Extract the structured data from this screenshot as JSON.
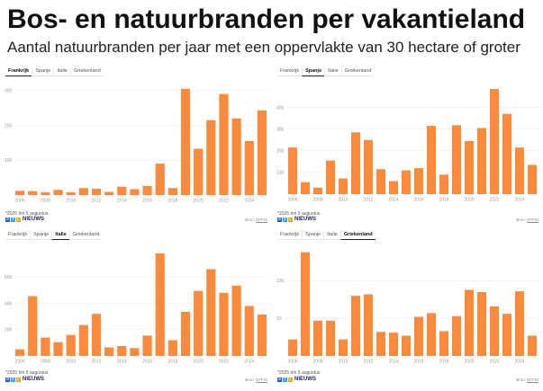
{
  "header": {
    "title": "Bos- en natuurbranden per vakantieland",
    "subtitle": "Aantal natuurbranden per jaar met een oppervlakte van 30 hectare of groter"
  },
  "colors": {
    "bar": "#fb8a3c",
    "brand_r": "#2a5ad8",
    "brand_t": "#3aa6e6",
    "brand_l": "#f4a61c",
    "brand_text": "#1c2050"
  },
  "panels": [
    {
      "tabs": [
        {
          "label": "Frankrijk",
          "active": true
        },
        {
          "label": "Spanje",
          "active": false
        },
        {
          "label": "Italie",
          "active": false
        },
        {
          "label": "Griekenland",
          "active": false
        }
      ],
      "footnote": "*2025 t/m 5 augustus",
      "brand": {
        "letters": [
          "R",
          "T",
          "L"
        ],
        "name": "NIEUWS"
      },
      "source": {
        "label": "Bron:",
        "link": "EFFIS"
      }
    },
    {
      "tabs": [
        {
          "label": "Frankrijk",
          "active": false
        },
        {
          "label": "Spanje",
          "active": true
        },
        {
          "label": "Italie",
          "active": false
        },
        {
          "label": "Griekenland",
          "active": false
        }
      ],
      "footnote": "*2025 t/m 5 augustus",
      "brand": {
        "letters": [
          "R",
          "T",
          "L"
        ],
        "name": "NIEUWS"
      },
      "source": {
        "label": "Bron:",
        "link": "EFFIS"
      }
    },
    {
      "tabs": [
        {
          "label": "Frankrijk",
          "active": false
        },
        {
          "label": "Spanje",
          "active": false
        },
        {
          "label": "Italie",
          "active": true
        },
        {
          "label": "Griekenland",
          "active": false
        }
      ],
      "footnote": "*2025 t/m 5 augustus",
      "brand": {
        "letters": [
          "R",
          "T",
          "L"
        ],
        "name": "NIEUWS"
      },
      "source": {
        "label": "Bron:",
        "link": "EFFIS"
      }
    },
    {
      "tabs": [
        {
          "label": "Frankrijk",
          "active": false
        },
        {
          "label": "Spanje",
          "active": false
        },
        {
          "label": "Italie",
          "active": false
        },
        {
          "label": "Griekenland",
          "active": true
        }
      ],
      "footnote": "*2025 t/m 5 augustus",
      "brand": {
        "letters": [
          "R",
          "T",
          "L"
        ],
        "name": "NIEUWS"
      },
      "source": {
        "label": "Bron:",
        "link": "EFFIS"
      }
    }
  ],
  "chart_data": [
    {
      "type": "bar",
      "categories": [
        2006,
        2007,
        2008,
        2009,
        2010,
        2011,
        2012,
        2013,
        2014,
        2015,
        2016,
        2017,
        2018,
        2019,
        2020,
        2021,
        2022,
        2023,
        2024,
        2025
      ],
      "values": [
        12,
        11,
        8,
        15,
        8,
        20,
        18,
        9,
        24,
        17,
        26,
        90,
        20,
        305,
        133,
        215,
        290,
        220,
        155,
        243
      ],
      "ylim": [
        0,
        320
      ],
      "yticks": [
        100,
        200,
        300
      ],
      "xticks": [
        2006,
        2008,
        2010,
        2012,
        2014,
        2016,
        2018,
        2020,
        2022,
        2024
      ]
    },
    {
      "type": "bar",
      "categories": [
        2006,
        2007,
        2008,
        2009,
        2010,
        2011,
        2012,
        2013,
        2014,
        2015,
        2016,
        2017,
        2018,
        2019,
        2020,
        2021,
        2022,
        2023,
        2024,
        2025
      ],
      "values": [
        215,
        55,
        30,
        155,
        72,
        285,
        250,
        115,
        60,
        110,
        120,
        315,
        90,
        318,
        245,
        305,
        485,
        370,
        215,
        135
      ],
      "ylim": [
        0,
        510
      ],
      "yticks": [
        100,
        200,
        300,
        400
      ],
      "xticks": [
        2006,
        2008,
        2010,
        2012,
        2014,
        2016,
        2018,
        2020,
        2022,
        2024
      ]
    },
    {
      "type": "bar",
      "categories": [
        2006,
        2007,
        2008,
        2009,
        2010,
        2011,
        2012,
        2013,
        2014,
        2015,
        2016,
        2017,
        2018,
        2019,
        2020,
        2021,
        2022,
        2023,
        2024,
        2025
      ],
      "values": [
        50,
        455,
        140,
        105,
        160,
        235,
        320,
        65,
        75,
        60,
        155,
        780,
        120,
        335,
        495,
        660,
        480,
        535,
        380,
        315
      ],
      "ylim": [
        0,
        800
      ],
      "yticks": [
        200,
        400,
        600
      ],
      "xticks": [
        2006,
        2008,
        2010,
        2012,
        2014,
        2016,
        2018,
        2020,
        2022,
        2024
      ]
    },
    {
      "type": "bar",
      "categories": [
        2006,
        2007,
        2008,
        2009,
        2010,
        2011,
        2012,
        2013,
        2014,
        2015,
        2016,
        2017,
        2018,
        2019,
        2020,
        2021,
        2022,
        2023,
        2024,
        2025
      ],
      "values": [
        22,
        138,
        47,
        47,
        22,
        80,
        82,
        32,
        31,
        27,
        52,
        57,
        33,
        53,
        88,
        85,
        66,
        56,
        86,
        27
      ],
      "ylim": [
        0,
        140
      ],
      "yticks": [
        50,
        100
      ],
      "xticks": [
        2006,
        2008,
        2010,
        2012,
        2014,
        2016,
        2018,
        2020,
        2022,
        2024
      ]
    }
  ]
}
